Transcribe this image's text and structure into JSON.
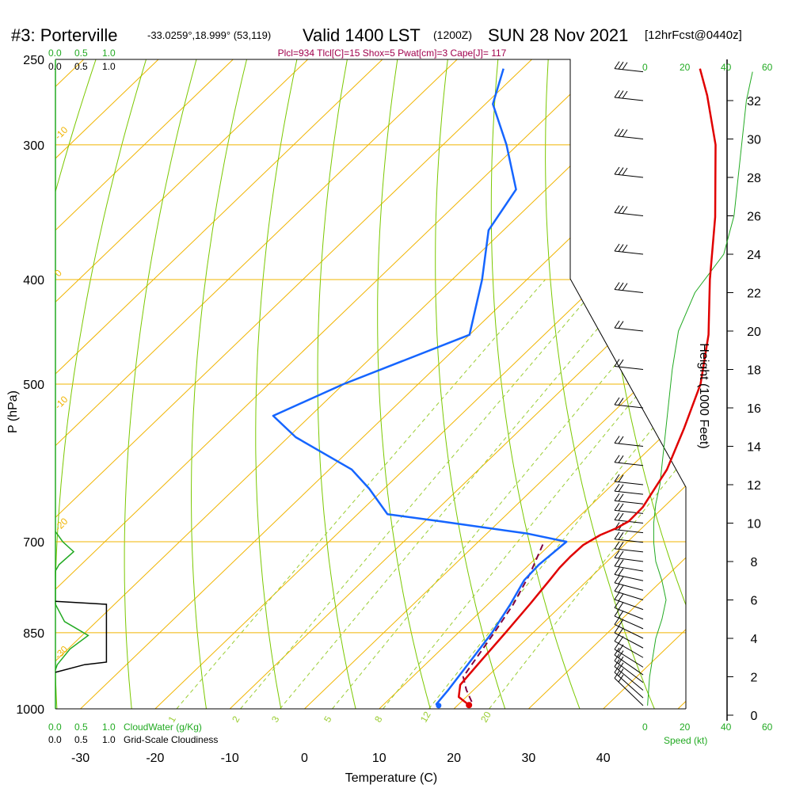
{
  "title": {
    "station": "#3: Porterville",
    "coords": "-33.0259°,18.999° (53,119)",
    "valid": "Valid 1400 LST",
    "utc": "(1200Z)",
    "date": "SUN 28 Nov 2021",
    "forecast": "[12hrFcst@0440z]"
  },
  "indices": "Plcl=934 Tlcl[C]=15 Shox=5 Pwat[cm]=3 Cape[J]= 117",
  "left_scale_top": {
    "green": [
      "0.0",
      "0.5",
      "1.0"
    ],
    "black": [
      "0.0",
      "0.5",
      "1.0"
    ]
  },
  "left_scale_bottom": {
    "green": [
      "0.0",
      "0.5",
      "1.0"
    ],
    "green_label": "CloudWater (g/Kg)",
    "black": [
      "0.0",
      "0.5",
      "1.0"
    ],
    "black_label": "Grid-Scale Cloudiness"
  },
  "speed_scale_top": {
    "black": [
      "0",
      "20",
      "40"
    ],
    "green": [
      "20",
      "40",
      "60"
    ]
  },
  "speed_scale_bottom": {
    "black": [
      "0",
      "20",
      "40"
    ],
    "green": [
      "60"
    ],
    "label": "Speed (kt)"
  },
  "colors": {
    "temperature": "#e00000",
    "dewpoint": "#1565ff",
    "parcel": "#800040",
    "isotherm": "#f0b400",
    "dry_adiabat": "#7bc800",
    "mixing_ratio": "#9acd32",
    "cloud_water": "#22aa22",
    "indices_text": "#a0004c"
  },
  "chart_data": {
    "type": "skew-t",
    "xlabel": "Temperature (C)",
    "ylabel": "P (hPa)",
    "y2label": "Height (1000 Feet)",
    "pressure_ticks": [
      250,
      300,
      400,
      500,
      700,
      850,
      1000
    ],
    "temperature_ticks": [
      -30,
      -20,
      -10,
      0,
      10,
      20,
      30,
      40
    ],
    "height_ticks": [
      0,
      2,
      4,
      6,
      8,
      10,
      12,
      14,
      16,
      18,
      20,
      22,
      24,
      26,
      28,
      30,
      32
    ],
    "isotherm_labels": [
      {
        "label": "-10",
        "t": -10,
        "p": 297
      },
      {
        "label": "0",
        "t": 0,
        "p": 398
      },
      {
        "label": "-10",
        "t": -10,
        "p": 528
      },
      {
        "label": "-20",
        "t": -20,
        "p": 685
      },
      {
        "label": "-30",
        "t": -30,
        "p": 900
      },
      {
        "label": "0",
        "t": 0,
        "p": 334
      },
      {
        "label": "10",
        "t": 10,
        "p": 410
      },
      {
        "label": "20",
        "t": 20,
        "p": 475
      },
      {
        "label": "30",
        "t": 30,
        "p": 560
      }
    ],
    "mixing_ratio_labels": [
      "1",
      "2",
      "3",
      "5",
      "8",
      "12",
      "20"
    ],
    "temperature": [
      {
        "p": 992,
        "t": 21.5
      },
      {
        "p": 975,
        "t": 19.0
      },
      {
        "p": 950,
        "t": 17.5
      },
      {
        "p": 900,
        "t": 16.9
      },
      {
        "p": 850,
        "t": 16.3
      },
      {
        "p": 800,
        "t": 15.6
      },
      {
        "p": 760,
        "t": 14.9
      },
      {
        "p": 740,
        "t": 14.5
      },
      {
        "p": 722,
        "t": 14.4
      },
      {
        "p": 705,
        "t": 14.5
      },
      {
        "p": 690,
        "t": 15.4
      },
      {
        "p": 680,
        "t": 16.6
      },
      {
        "p": 670,
        "t": 17.3
      },
      {
        "p": 650,
        "t": 17.2
      },
      {
        "p": 600,
        "t": 15.2
      },
      {
        "p": 550,
        "t": 11.8
      },
      {
        "p": 500,
        "t": 7.8
      },
      {
        "p": 450,
        "t": 2.0
      },
      {
        "p": 400,
        "t": -5.5
      },
      {
        "p": 350,
        "t": -13.5
      },
      {
        "p": 300,
        "t": -23.5
      },
      {
        "p": 270,
        "t": -31.5
      },
      {
        "p": 255,
        "t": -36.2
      }
    ],
    "dewpoint": [
      {
        "p": 993,
        "t": 17.5
      },
      {
        "p": 990,
        "t": 17.0
      },
      {
        "p": 960,
        "t": 16.6
      },
      {
        "p": 900,
        "t": 15.5
      },
      {
        "p": 850,
        "t": 14.5
      },
      {
        "p": 800,
        "t": 13.0
      },
      {
        "p": 760,
        "t": 11.5
      },
      {
        "p": 735,
        "t": 11.3
      },
      {
        "p": 700,
        "t": 11.8
      },
      {
        "p": 688,
        "t": 5.5
      },
      {
        "p": 670,
        "t": -8.0
      },
      {
        "p": 660,
        "t": -16.0
      },
      {
        "p": 625,
        "t": -22.0
      },
      {
        "p": 600,
        "t": -27.0
      },
      {
        "p": 560,
        "t": -39.0
      },
      {
        "p": 535,
        "t": -45.0
      },
      {
        "p": 500,
        "t": -40.0
      },
      {
        "p": 450,
        "t": -30.0
      },
      {
        "p": 400,
        "t": -36.0
      },
      {
        "p": 360,
        "t": -42.0
      },
      {
        "p": 330,
        "t": -44.0
      },
      {
        "p": 300,
        "t": -51.5
      },
      {
        "p": 275,
        "t": -59.0
      },
      {
        "p": 255,
        "t": -62.5
      }
    ],
    "parcel": [
      {
        "p": 985,
        "t": 21.4
      },
      {
        "p": 960,
        "t": 19.0
      },
      {
        "p": 934,
        "t": 16.8
      },
      {
        "p": 900,
        "t": 16.0
      },
      {
        "p": 850,
        "t": 14.8
      },
      {
        "p": 800,
        "t": 13.4
      },
      {
        "p": 750,
        "t": 11.4
      },
      {
        "p": 700,
        "t": 8.8
      }
    ],
    "wind_speed_profile_kt": [
      {
        "h": 0.5,
        "s": 1
      },
      {
        "h": 2,
        "s": 2
      },
      {
        "h": 4,
        "s": 5
      },
      {
        "h": 5,
        "s": 8
      },
      {
        "h": 6,
        "s": 10
      },
      {
        "h": 7,
        "s": 8
      },
      {
        "h": 8,
        "s": 5
      },
      {
        "h": 9,
        "s": 4
      },
      {
        "h": 10,
        "s": 4
      },
      {
        "h": 11,
        "s": 5
      },
      {
        "h": 12,
        "s": 7
      },
      {
        "h": 14,
        "s": 9
      },
      {
        "h": 16,
        "s": 11
      },
      {
        "h": 18,
        "s": 13
      },
      {
        "h": 20,
        "s": 16
      },
      {
        "h": 22,
        "s": 24
      },
      {
        "h": 24,
        "s": 38
      },
      {
        "h": 26,
        "s": 43
      },
      {
        "h": 28,
        "s": 45
      },
      {
        "h": 30,
        "s": 47
      },
      {
        "h": 32,
        "s": 49
      },
      {
        "h": 33.5,
        "s": 52
      }
    ],
    "cloud_water": [
      {
        "p": 685,
        "v": 0.0
      },
      {
        "p": 700,
        "v": 0.2
      },
      {
        "p": 715,
        "v": 0.5
      },
      {
        "p": 735,
        "v": 0.1
      },
      {
        "p": 745,
        "v": 0.0
      },
      {
        "p": 800,
        "v": 0.0
      },
      {
        "p": 830,
        "v": 0.25
      },
      {
        "p": 855,
        "v": 0.9
      },
      {
        "p": 880,
        "v": 0.4
      },
      {
        "p": 910,
        "v": 0.05
      },
      {
        "p": 920,
        "v": 0.0
      }
    ],
    "cloudiness": [
      {
        "p": 795,
        "v": 0.0
      },
      {
        "p": 800,
        "v": 1.4
      },
      {
        "p": 905,
        "v": 1.4
      },
      {
        "p": 910,
        "v": 0.8
      },
      {
        "p": 925,
        "v": 0.0
      }
    ],
    "wind_barb_heights_kft": [
      0.5,
      0.9,
      1.3,
      1.7,
      2.1,
      2.5,
      3.0,
      3.5,
      4.0,
      4.5,
      5.0,
      5.5,
      6.0,
      6.5,
      7.0,
      7.5,
      8.0,
      8.5,
      9.0,
      9.5,
      10.0,
      10.5,
      11.0,
      11.5,
      12.0,
      13.0,
      14.0,
      16.0,
      18.0,
      20.0,
      22.0,
      24.0,
      26.0,
      28.0,
      30.0,
      32.0,
      33.5
    ]
  }
}
